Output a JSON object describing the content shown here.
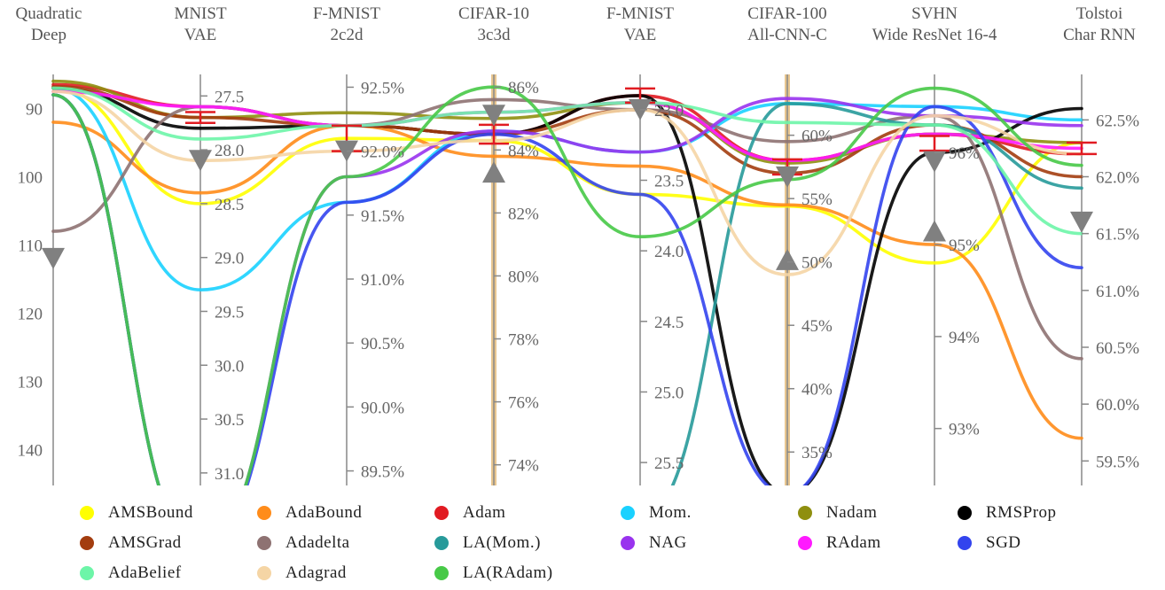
{
  "chart_data": {
    "type": "line",
    "kind": "parallel-coordinates",
    "problems": [
      {
        "id": "quad",
        "title": [
          "Quadratic",
          "Deep"
        ],
        "ticks": [
          "90",
          "100",
          "110",
          "120",
          "130",
          "140"
        ],
        "tick_values": [
          90,
          100,
          110,
          120,
          130,
          140
        ],
        "range": [
          85,
          145
        ],
        "inverted": true
      },
      {
        "id": "mnist_vae",
        "title": [
          "MNIST",
          "VAE"
        ],
        "ticks": [
          "27.5",
          "28.0",
          "28.5",
          "29.0",
          "29.5",
          "30.0",
          "30.5",
          "31.0"
        ],
        "tick_values": [
          27.5,
          28.0,
          28.5,
          29.0,
          29.5,
          30.0,
          30.5,
          31.0
        ],
        "range": [
          27.3,
          31.1
        ],
        "inverted": true
      },
      {
        "id": "fmnist_2c2d",
        "title": [
          "F-MNIST",
          "2c2d"
        ],
        "ticks": [
          "92.5%",
          "92.0%",
          "91.5%",
          "91.0%",
          "90.5%",
          "90.0%",
          "89.5%"
        ],
        "tick_values": [
          92.5,
          92.0,
          91.5,
          91.0,
          90.5,
          90.0,
          89.5
        ],
        "range": [
          92.6,
          89.4
        ],
        "inverted": false
      },
      {
        "id": "cifar10",
        "title": [
          "CIFAR-10",
          "3c3d"
        ],
        "ticks": [
          "86%",
          "84%",
          "82%",
          "80%",
          "78%",
          "76%",
          "74%"
        ],
        "tick_values": [
          86,
          84,
          82,
          80,
          78,
          76,
          74
        ],
        "range": [
          86.4,
          73.4
        ],
        "inverted": false
      },
      {
        "id": "fmnist_vae",
        "title": [
          "F-MNIST",
          "VAE"
        ],
        "ticks": [
          "23.0",
          "23.5",
          "24.0",
          "24.5",
          "25.0",
          "25.5"
        ],
        "tick_values": [
          23.0,
          23.5,
          24.0,
          24.5,
          25.0,
          25.5
        ],
        "range": [
          22.75,
          25.65
        ],
        "inverted": true
      },
      {
        "id": "cifar100",
        "title": [
          "CIFAR-100",
          "All-CNN-C"
        ],
        "ticks": [
          "60%",
          "55%",
          "50%",
          "45%",
          "40%",
          "35%"
        ],
        "tick_values": [
          60,
          55,
          50,
          45,
          40,
          35
        ],
        "range": [
          64.8,
          32.5
        ],
        "inverted": false
      },
      {
        "id": "svhn",
        "title": [
          "SVHN",
          "Wide ResNet 16-4"
        ],
        "ticks": [
          "96%",
          "95%",
          "94%",
          "93%"
        ],
        "tick_values": [
          96,
          95,
          94,
          93
        ],
        "range": [
          96.85,
          92.4
        ],
        "inverted": false
      },
      {
        "id": "tolstoi",
        "title": [
          "Tolstoi",
          "Char RNN"
        ],
        "ticks": [
          "62.5%",
          "62.0%",
          "61.5%",
          "61.0%",
          "60.5%",
          "60.0%",
          "59.5%"
        ],
        "tick_values": [
          62.5,
          62.0,
          61.5,
          61.0,
          60.5,
          60.0,
          59.5
        ],
        "range": [
          62.9,
          59.3
        ],
        "inverted": false
      }
    ],
    "series": [
      {
        "name": "AMSBound",
        "color": "#ffff00",
        "values": [
          87,
          28.5,
          92.1,
          84.3,
          23.6,
          54.4,
          94.8,
          62.3
        ]
      },
      {
        "name": "AdaBound",
        "color": "#ff8c1a",
        "values": [
          92,
          28.4,
          92.2,
          83.8,
          23.4,
          54.5,
          95.0,
          59.7
        ]
      },
      {
        "name": "Adam",
        "color": "#e11b22",
        "values": [
          86.5,
          27.6,
          92.2,
          84.5,
          22.9,
          58.0,
          96.2,
          62.2
        ]
      },
      {
        "name": "Mom.",
        "color": "#1ad1ff",
        "values": [
          87,
          29.3,
          91.6,
          84.6,
          23.3,
          62.5,
          96.5,
          62.5
        ]
      },
      {
        "name": "Nadam",
        "color": "#8f8f0f",
        "values": [
          86,
          27.7,
          92.3,
          85.0,
          22.95,
          57.8,
          96.2,
          62.3
        ]
      },
      {
        "name": "RMSProp",
        "color": "#000000",
        "values": [
          87,
          27.8,
          92.2,
          84.5,
          22.9,
          31.7,
          96.0,
          62.6
        ]
      },
      {
        "name": "AMSGrad",
        "color": "#a33d0f",
        "values": [
          86.8,
          27.7,
          92.2,
          84.5,
          23.0,
          57.0,
          96.3,
          62.0
        ]
      },
      {
        "name": "Adadelta",
        "color": "#8e7272",
        "values": [
          108,
          27.6,
          92.2,
          85.6,
          23.0,
          59.5,
          96.4,
          60.4
        ]
      },
      {
        "name": "LA(Mom.)",
        "color": "#279a9a",
        "values": [
          88,
          33.5,
          88.5,
          71.0,
          25.9,
          62.5,
          96.3,
          61.9
        ]
      },
      {
        "name": "NAG",
        "color": "#9933ee",
        "values": [
          88,
          33.5,
          91.8,
          84.6,
          23.3,
          62.9,
          96.4,
          62.45
        ]
      },
      {
        "name": "RAdam",
        "color": "#ff1aff",
        "values": [
          87.5,
          27.6,
          92.2,
          85.2,
          22.95,
          58.0,
          96.2,
          62.25
        ]
      },
      {
        "name": "SGD",
        "color": "#3344ee",
        "values": [
          88,
          33.5,
          91.6,
          84.5,
          23.6,
          31.7,
          96.5,
          61.2
        ]
      },
      {
        "name": "AdaBelief",
        "color": "#6df5a8",
        "values": [
          87,
          27.9,
          92.2,
          85.2,
          22.95,
          61.0,
          96.3,
          61.5
        ]
      },
      {
        "name": "Adagrad",
        "color": "#f5d5a5",
        "values": [
          87.5,
          28.1,
          92.0,
          84.3,
          23.0,
          49.0,
          96.4,
          62.2
        ]
      },
      {
        "name": "LA(RAdam)",
        "color": "#47c947",
        "values": [
          88,
          33.5,
          91.8,
          86.0,
          23.9,
          56.5,
          96.7,
          62.1
        ]
      }
    ],
    "markers": [
      {
        "axis": "quad",
        "shape": "triangle-down",
        "value": 112
      },
      {
        "axis": "mnist_vae",
        "shape": "triangle-down",
        "value": 28.1
      },
      {
        "axis": "fmnist_2c2d",
        "shape": "triangle-down",
        "value": 92.0
      },
      {
        "axis": "cifar10",
        "shape": "triangle-down",
        "value": 85.1
      },
      {
        "axis": "cifar10",
        "shape": "triangle-up",
        "value": 83.3
      },
      {
        "axis": "fmnist_vae",
        "shape": "triangle-down",
        "value": 23.0
      },
      {
        "axis": "cifar100",
        "shape": "triangle-down",
        "value": 56.7
      },
      {
        "axis": "cifar100",
        "shape": "triangle-up",
        "value": 50.2
      },
      {
        "axis": "svhn",
        "shape": "triangle-down",
        "value": 95.9
      },
      {
        "axis": "svhn",
        "shape": "triangle-up",
        "value": 95.15
      },
      {
        "axis": "tolstoi",
        "shape": "triangle-down",
        "value": 61.6
      }
    ],
    "error_bars": [
      {
        "axis": "mnist_vae",
        "center": 27.7,
        "half": 0.05
      },
      {
        "axis": "fmnist_2c2d",
        "center": 92.1,
        "half": 0.1
      },
      {
        "axis": "cifar10",
        "center": 84.5,
        "half": 0.3
      },
      {
        "axis": "fmnist_vae",
        "center": 22.9,
        "half": 0.05
      },
      {
        "axis": "cifar100",
        "center": 57.5,
        "half": 0.6
      },
      {
        "axis": "svhn",
        "center": 96.1,
        "half": 0.08
      },
      {
        "axis": "tolstoi",
        "center": 62.25,
        "half": 0.05
      }
    ]
  },
  "legend": {
    "items": [
      {
        "name": "AMSBound",
        "color": "#ffff00"
      },
      {
        "name": "AdaBound",
        "color": "#ff8c1a"
      },
      {
        "name": "Adam",
        "color": "#e11b22"
      },
      {
        "name": "Mom.",
        "color": "#1ad1ff"
      },
      {
        "name": "Nadam",
        "color": "#8f8f0f"
      },
      {
        "name": "RMSProp",
        "color": "#000000"
      },
      {
        "name": "AMSGrad",
        "color": "#a33d0f"
      },
      {
        "name": "Adadelta",
        "color": "#8e7272"
      },
      {
        "name": "LA(Mom.)",
        "color": "#279a9a"
      },
      {
        "name": "NAG",
        "color": "#9933ee"
      },
      {
        "name": "RAdam",
        "color": "#ff1aff"
      },
      {
        "name": "SGD",
        "color": "#3344ee"
      },
      {
        "name": "AdaBelief",
        "color": "#6df5a8"
      },
      {
        "name": "Adagrad",
        "color": "#f5d5a5"
      },
      {
        "name": "LA(RAdam)",
        "color": "#47c947"
      }
    ]
  }
}
